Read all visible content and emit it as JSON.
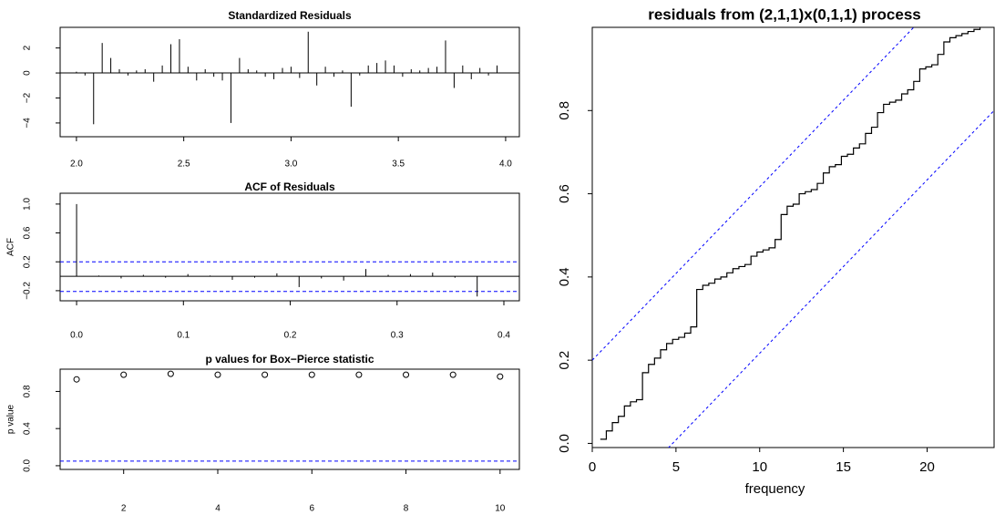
{
  "chart_data": [
    {
      "type": "spike",
      "title": "Standardized Residuals",
      "color": "#000000",
      "x": [
        2.0,
        2.04,
        2.08,
        2.12,
        2.16,
        2.2,
        2.24,
        2.28,
        2.32,
        2.36,
        2.4,
        2.44,
        2.48,
        2.52,
        2.56,
        2.6,
        2.64,
        2.68,
        2.72,
        2.76,
        2.8,
        2.84,
        2.88,
        2.92,
        2.96,
        3.0,
        3.04,
        3.08,
        3.12,
        3.16,
        3.2,
        3.24,
        3.28,
        3.32,
        3.36,
        3.4,
        3.44,
        3.48,
        3.52,
        3.56,
        3.6,
        3.64,
        3.68,
        3.72,
        3.76,
        3.8,
        3.84,
        3.88,
        3.92,
        3.96
      ],
      "values": [
        0.1,
        -0.2,
        -4.1,
        2.4,
        1.2,
        0.3,
        -0.2,
        0.2,
        0.3,
        -0.7,
        0.6,
        2.3,
        2.7,
        0.5,
        -0.6,
        0.3,
        -0.3,
        -0.6,
        -4.0,
        1.2,
        0.3,
        0.2,
        -0.3,
        -0.5,
        0.4,
        0.5,
        -0.4,
        3.3,
        -1.0,
        0.5,
        -0.3,
        0.2,
        -2.7,
        -0.2,
        0.6,
        0.8,
        1.0,
        0.6,
        -0.3,
        0.3,
        0.2,
        0.4,
        0.5,
        2.6,
        -1.2,
        0.6,
        -0.5,
        0.4,
        -0.2,
        0.6
      ],
      "hlines": [
        0
      ],
      "xlim": [
        1.924,
        4.064
      ],
      "ylim": [
        -5.1,
        3.65
      ],
      "xticks": [
        {
          "value": 2,
          "label": "2.0"
        },
        2.5,
        {
          "value": 3,
          "label": "3.0"
        },
        3.5,
        {
          "value": 4,
          "label": "4.0"
        }
      ],
      "yticks": [
        {
          "value": -4,
          "label": "−4"
        },
        {
          "value": -2,
          "label": "−2"
        },
        0,
        2
      ]
    },
    {
      "type": "spike",
      "title": "ACF of Residuals",
      "ylabel": "ACF",
      "color": "#000000",
      "x": [
        0,
        0.0208,
        0.0417,
        0.0625,
        0.0833,
        0.1042,
        0.125,
        0.1458,
        0.1667,
        0.1875,
        0.2083,
        0.2292,
        0.25,
        0.2708,
        0.2917,
        0.3125,
        0.3333,
        0.3542,
        0.375
      ],
      "values": [
        1.0,
        0.01,
        -0.03,
        0.02,
        -0.02,
        0.03,
        0.01,
        -0.05,
        -0.02,
        0.04,
        -0.15,
        -0.03,
        -0.06,
        0.1,
        0.02,
        0.03,
        0.05,
        -0.02,
        -0.28
      ],
      "hlines": [
        0
      ],
      "dashed_hlines": [
        0.2,
        -0.21
      ],
      "ref_color": "#0000ff",
      "xlim": [
        -0.0154,
        0.4145
      ],
      "ylim": [
        -0.34,
        1.15
      ],
      "xticks": [
        {
          "value": 0,
          "label": "0.0"
        },
        0.1,
        0.2,
        0.3,
        0.4
      ],
      "yticks": [
        {
          "value": -0.2,
          "label": "−0.2"
        },
        0.2,
        0.6,
        {
          "value": 1,
          "label": "1.0"
        }
      ]
    },
    {
      "type": "scatter",
      "title": "p values for Box−Pierce statistic",
      "ylabel": "p value",
      "color": "#000000",
      "x": [
        1,
        2,
        3,
        4,
        5,
        6,
        7,
        8,
        9,
        10
      ],
      "values": [
        0.93,
        0.98,
        0.99,
        0.98,
        0.98,
        0.98,
        0.98,
        0.98,
        0.98,
        0.96
      ],
      "dashed_hlines": [
        0.05
      ],
      "ref_color": "#0000ff",
      "xlim": [
        0.65,
        10.41
      ],
      "ylim": [
        -0.04,
        1.04
      ],
      "xticks": [
        2,
        4,
        6,
        8,
        10
      ],
      "yticks": [
        {
          "value": 0,
          "label": "0.0"
        },
        0.4,
        0.8
      ]
    },
    {
      "type": "step",
      "title": "residuals from (2,1,1)x(0,1,1) process",
      "xlabel": "frequency",
      "color": "#000000",
      "x": [
        0.48,
        0.84,
        1.2,
        1.56,
        1.92,
        2.28,
        2.64,
        3.0,
        3.36,
        3.72,
        4.08,
        4.44,
        4.8,
        5.16,
        5.52,
        5.88,
        6.24,
        6.6,
        6.96,
        7.32,
        7.68,
        8.04,
        8.4,
        8.76,
        9.12,
        9.48,
        9.84,
        10.2,
        10.56,
        10.92,
        11.28,
        11.64,
        12.0,
        12.36,
        12.72,
        13.08,
        13.44,
        13.8,
        14.16,
        14.52,
        14.88,
        15.24,
        15.6,
        15.96,
        16.32,
        16.68,
        17.04,
        17.4,
        17.76,
        18.12,
        18.48,
        18.84,
        19.2,
        19.56,
        19.92,
        20.28,
        20.64,
        21.0,
        21.36,
        21.72,
        22.08,
        22.44,
        22.8,
        23.16
      ],
      "values": [
        0.01,
        0.03,
        0.05,
        0.065,
        0.09,
        0.1,
        0.105,
        0.17,
        0.19,
        0.205,
        0.225,
        0.24,
        0.25,
        0.255,
        0.265,
        0.28,
        0.37,
        0.38,
        0.385,
        0.395,
        0.4,
        0.41,
        0.42,
        0.425,
        0.43,
        0.45,
        0.46,
        0.465,
        0.47,
        0.49,
        0.55,
        0.57,
        0.575,
        0.6,
        0.605,
        0.61,
        0.625,
        0.65,
        0.665,
        0.67,
        0.69,
        0.695,
        0.71,
        0.72,
        0.745,
        0.76,
        0.795,
        0.815,
        0.82,
        0.825,
        0.84,
        0.85,
        0.87,
        0.9,
        0.905,
        0.91,
        0.935,
        0.965,
        0.975,
        0.98,
        0.985,
        0.99,
        0.995,
        1.0
      ],
      "bounds_offset": 0.2,
      "ref_color": "#0000ff",
      "xlim": [
        0,
        24
      ],
      "ylim": [
        -0.01,
        1.0
      ],
      "xticks": [
        0,
        5,
        10,
        15,
        20
      ],
      "yticks": [
        {
          "value": 0,
          "label": "0.0"
        },
        0.2,
        0.4,
        0.6,
        0.8
      ]
    }
  ]
}
